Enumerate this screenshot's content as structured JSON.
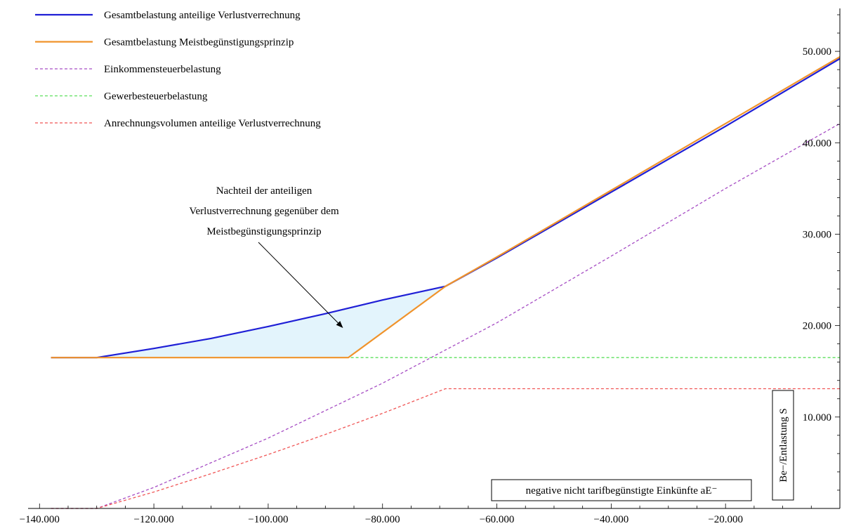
{
  "chart_data": {
    "type": "line",
    "title": "",
    "xlabel": "negative nicht tarifbegünstigte Einkünfte aE⁻",
    "ylabel": "Be−/Entlastung S",
    "xlim": [
      -142000,
      0
    ],
    "ylim": [
      0,
      55000
    ],
    "x_ticks": [
      {
        "value": -140000,
        "label": "−140.000"
      },
      {
        "value": -120000,
        "label": "−120.000"
      },
      {
        "value": -100000,
        "label": "−100.000"
      },
      {
        "value": -80000,
        "label": "−80.000"
      },
      {
        "value": -60000,
        "label": "−60.000"
      },
      {
        "value": -40000,
        "label": "−40.000"
      },
      {
        "value": -20000,
        "label": "−20.000"
      }
    ],
    "y_ticks": [
      {
        "value": 10000,
        "label": "10.000"
      },
      {
        "value": 20000,
        "label": "20.000"
      },
      {
        "value": 30000,
        "label": "30.000"
      },
      {
        "value": 40000,
        "label": "40.000"
      },
      {
        "value": 50000,
        "label": "50.000"
      }
    ],
    "grid": false,
    "legend_position": "top-left",
    "series": [
      {
        "name": "Gesamtbelastung anteilige Verlustverrechnung",
        "color": "#1f1fd6",
        "dash": "solid",
        "points": [
          [
            -138000,
            16500
          ],
          [
            -130000,
            16500
          ],
          [
            -120000,
            17500
          ],
          [
            -110000,
            18600
          ],
          [
            -100000,
            19900
          ],
          [
            -90000,
            21300
          ],
          [
            -80000,
            22800
          ],
          [
            -69000,
            24300
          ],
          [
            -60000,
            27400
          ],
          [
            -40000,
            34600
          ],
          [
            -20000,
            41800
          ],
          [
            0,
            49200
          ]
        ]
      },
      {
        "name": "Gesamtbelastung Meistbegünstigungsprinzip",
        "color": "#f0932b",
        "dash": "solid",
        "points": [
          [
            -138000,
            16500
          ],
          [
            -86000,
            16500
          ],
          [
            -69000,
            24300
          ],
          [
            -60000,
            27500
          ],
          [
            -40000,
            34800
          ],
          [
            -20000,
            42100
          ],
          [
            0,
            49400
          ]
        ]
      },
      {
        "name": "Einkommensteuerbelastung",
        "color": "#a64dc4",
        "dash": "dashed",
        "points": [
          [
            -138000,
            0
          ],
          [
            -130000,
            0
          ],
          [
            -120000,
            2300
          ],
          [
            -110000,
            5000
          ],
          [
            -100000,
            7700
          ],
          [
            -90000,
            10700
          ],
          [
            -80000,
            13700
          ],
          [
            -70000,
            17000
          ],
          [
            -60000,
            20300
          ],
          [
            -40000,
            27600
          ],
          [
            -20000,
            35000
          ],
          [
            0,
            42100
          ]
        ]
      },
      {
        "name": "Gewerbesteuerbelastung",
        "color": "#5de05d",
        "dash": "dashed",
        "points": [
          [
            -138000,
            16500
          ],
          [
            0,
            16500
          ]
        ]
      },
      {
        "name": "Anrechnungsvolumen anteilige Verlustverrechnung",
        "color": "#f05555",
        "dash": "dashed",
        "points": [
          [
            -138000,
            0
          ],
          [
            -130000,
            0
          ],
          [
            -120000,
            1800
          ],
          [
            -110000,
            3800
          ],
          [
            -100000,
            5900
          ],
          [
            -90000,
            8100
          ],
          [
            -80000,
            10400
          ],
          [
            -69000,
            13100
          ],
          [
            0,
            13100
          ]
        ]
      }
    ],
    "annotation": {
      "lines": [
        "Nachteil der anteiligen",
        "Verlustverrechnung gegenüber dem",
        "Meistbegünstigungsprinzip"
      ],
      "arrow_to": [
        -87000,
        19800
      ]
    },
    "shaded_region": {
      "color": "#e3f4fc",
      "between": [
        "Gesamtbelastung anteilige Verlustverrechnung",
        "Gesamtbelastung Meistbegünstigungsprinzip"
      ],
      "x_range": [
        -130000,
        -69000
      ]
    }
  }
}
